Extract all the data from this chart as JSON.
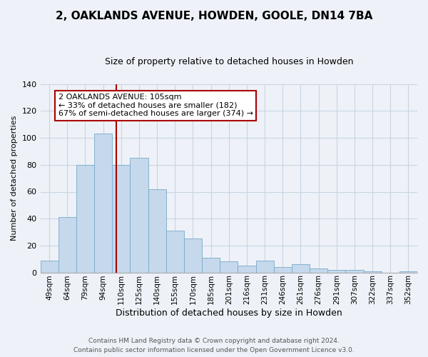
{
  "title": "2, OAKLANDS AVENUE, HOWDEN, GOOLE, DN14 7BA",
  "subtitle": "Size of property relative to detached houses in Howden",
  "xlabel": "Distribution of detached houses by size in Howden",
  "ylabel": "Number of detached properties",
  "bar_labels": [
    "49sqm",
    "64sqm",
    "79sqm",
    "94sqm",
    "110sqm",
    "125sqm",
    "140sqm",
    "155sqm",
    "170sqm",
    "185sqm",
    "201sqm",
    "216sqm",
    "231sqm",
    "246sqm",
    "261sqm",
    "276sqm",
    "291sqm",
    "307sqm",
    "322sqm",
    "337sqm",
    "352sqm"
  ],
  "bar_values": [
    9,
    41,
    80,
    103,
    80,
    85,
    62,
    31,
    25,
    11,
    8,
    5,
    9,
    4,
    6,
    3,
    2,
    2,
    1,
    0,
    1
  ],
  "bar_color": "#c5d8ec",
  "bar_edge_color": "#7aaac8",
  "vline_x_index": 3.72,
  "vline_color": "#aa0000",
  "ylim": [
    0,
    140
  ],
  "yticks": [
    0,
    20,
    40,
    60,
    80,
    100,
    120,
    140
  ],
  "annotation_title": "2 OAKLANDS AVENUE: 105sqm",
  "annotation_line1": "← 33% of detached houses are smaller (182)",
  "annotation_line2": "67% of semi-detached houses are larger (374) →",
  "annotation_box_facecolor": "#ffffff",
  "annotation_box_edgecolor": "#aa0000",
  "footer_line1": "Contains HM Land Registry data © Crown copyright and database right 2024.",
  "footer_line2": "Contains public sector information licensed under the Open Government Licence v3.0.",
  "grid_color": "#c8d4e4",
  "background_color": "#eef2f8",
  "title_fontsize": 11,
  "subtitle_fontsize": 9,
  "ylabel_fontsize": 8,
  "xlabel_fontsize": 9,
  "tick_fontsize": 8,
  "xtick_fontsize": 7.5,
  "annotation_fontsize": 8,
  "footer_fontsize": 6.5
}
